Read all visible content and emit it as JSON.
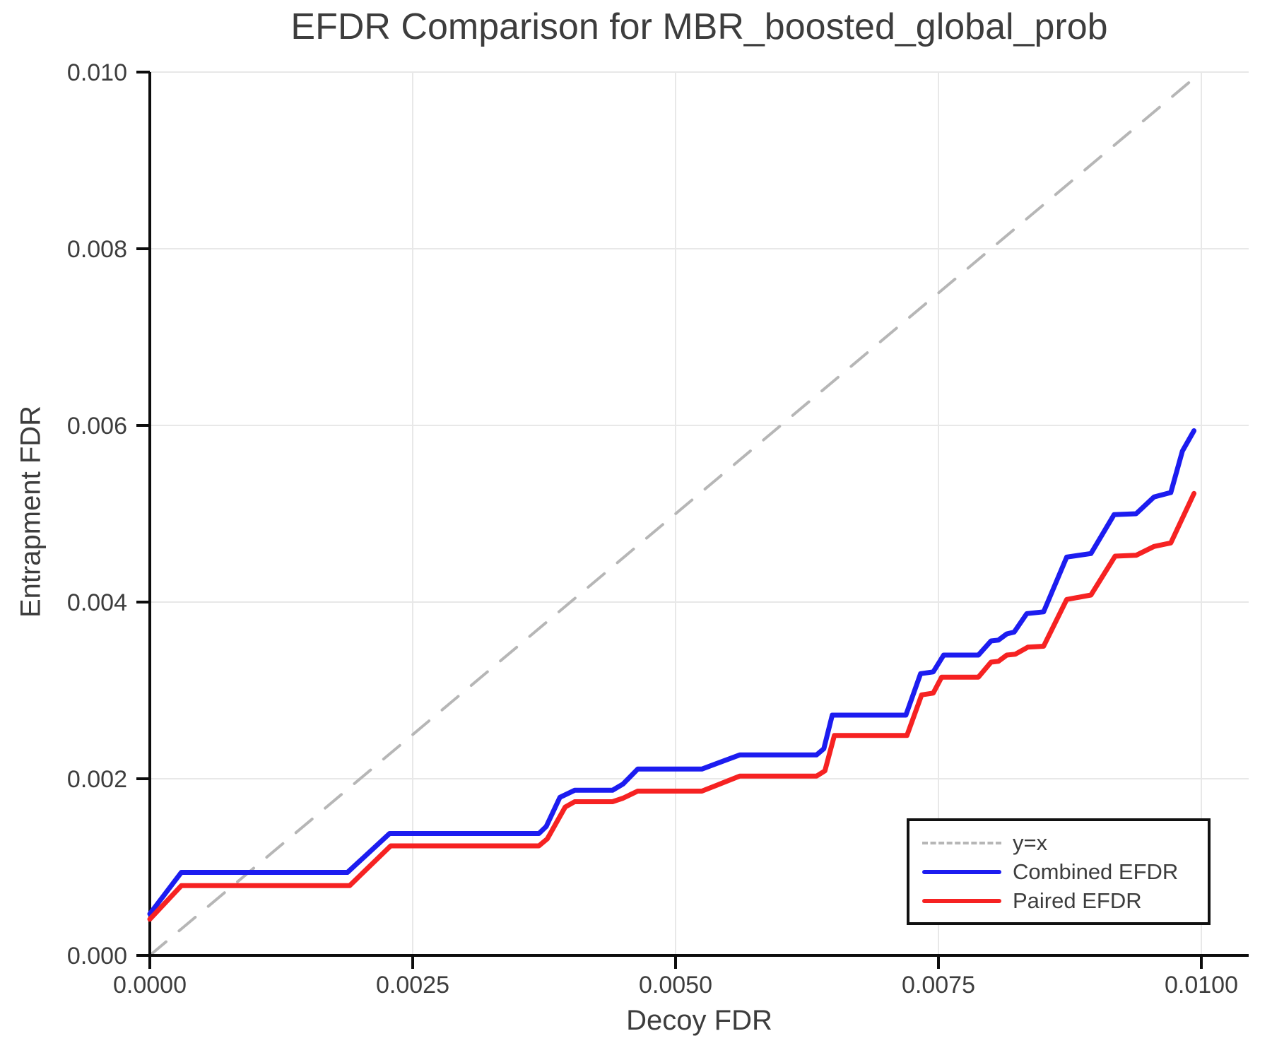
{
  "chart_data": {
    "type": "line",
    "title": "EFDR Comparison for MBR_boosted_global_prob",
    "xlabel": "Decoy FDR",
    "ylabel": "Entrapment FDR",
    "xlim": [
      0.0,
      0.01
    ],
    "ylim": [
      0.0,
      0.01
    ],
    "grid": true,
    "legend_position": "lower right",
    "x_ticks": {
      "values": [
        0.0,
        0.0025,
        0.005,
        0.0075,
        0.01
      ],
      "labels": [
        "0.0000",
        "0.0025",
        "0.0050",
        "0.0075",
        "0.0100"
      ]
    },
    "y_ticks": {
      "values": [
        0.0,
        0.002,
        0.004,
        0.006,
        0.008,
        0.01
      ],
      "labels": [
        "0.000",
        "0.002",
        "0.004",
        "0.006",
        "0.008",
        "0.010"
      ]
    },
    "series": [
      {
        "name": "y=x",
        "style": "dashed",
        "color": "#b6b6b6",
        "stroke_width": 4,
        "points": [
          [
            0.0,
            0.0
          ],
          [
            0.00995,
            0.00995
          ]
        ]
      },
      {
        "name": "Combined EFDR",
        "style": "solid",
        "color": "#1c1cf0",
        "stroke_width": 7,
        "points": [
          [
            0.0,
            0.00047
          ],
          [
            0.0003,
            0.00094
          ],
          [
            0.00188,
            0.00094
          ],
          [
            0.00228,
            0.00138
          ],
          [
            0.0037,
            0.00138
          ],
          [
            0.00377,
            0.00146
          ],
          [
            0.0039,
            0.00179
          ],
          [
            0.00404,
            0.00187
          ],
          [
            0.0044,
            0.00187
          ],
          [
            0.0045,
            0.00194
          ],
          [
            0.00464,
            0.00211
          ],
          [
            0.00525,
            0.00211
          ],
          [
            0.00561,
            0.00227
          ],
          [
            0.00634,
            0.00227
          ],
          [
            0.00641,
            0.00234
          ],
          [
            0.00649,
            0.00272
          ],
          [
            0.00719,
            0.00272
          ],
          [
            0.00733,
            0.00319
          ],
          [
            0.00745,
            0.00321
          ],
          [
            0.00755,
            0.0034
          ],
          [
            0.00788,
            0.0034
          ],
          [
            0.008,
            0.00356
          ],
          [
            0.00807,
            0.00357
          ],
          [
            0.00815,
            0.00364
          ],
          [
            0.00822,
            0.00366
          ],
          [
            0.00834,
            0.00387
          ],
          [
            0.0085,
            0.00389
          ],
          [
            0.00872,
            0.00451
          ],
          [
            0.00895,
            0.00455
          ],
          [
            0.00917,
            0.00499
          ],
          [
            0.00938,
            0.005
          ],
          [
            0.00955,
            0.00519
          ],
          [
            0.00971,
            0.00524
          ],
          [
            0.00982,
            0.00571
          ],
          [
            0.00993,
            0.00594
          ]
        ]
      },
      {
        "name": "Paired EFDR",
        "style": "solid",
        "color": "#f62222",
        "stroke_width": 7,
        "points": [
          [
            0.0,
            0.00041
          ],
          [
            0.0003,
            0.00079
          ],
          [
            0.0019,
            0.00079
          ],
          [
            0.00229,
            0.00124
          ],
          [
            0.0037,
            0.00124
          ],
          [
            0.00378,
            0.00132
          ],
          [
            0.00395,
            0.00168
          ],
          [
            0.00404,
            0.00174
          ],
          [
            0.0044,
            0.00174
          ],
          [
            0.0045,
            0.00178
          ],
          [
            0.00464,
            0.00186
          ],
          [
            0.00525,
            0.00186
          ],
          [
            0.00561,
            0.00203
          ],
          [
            0.00634,
            0.00203
          ],
          [
            0.00642,
            0.00209
          ],
          [
            0.00651,
            0.00249
          ],
          [
            0.0072,
            0.00249
          ],
          [
            0.00734,
            0.00295
          ],
          [
            0.00745,
            0.00297
          ],
          [
            0.00753,
            0.00315
          ],
          [
            0.00788,
            0.00315
          ],
          [
            0.008,
            0.00332
          ],
          [
            0.00807,
            0.00333
          ],
          [
            0.00815,
            0.0034
          ],
          [
            0.00823,
            0.00341
          ],
          [
            0.00835,
            0.00349
          ],
          [
            0.0085,
            0.0035
          ],
          [
            0.00872,
            0.00403
          ],
          [
            0.00895,
            0.00408
          ],
          [
            0.00918,
            0.00452
          ],
          [
            0.00938,
            0.00453
          ],
          [
            0.00955,
            0.00463
          ],
          [
            0.00971,
            0.00467
          ],
          [
            0.00993,
            0.00523
          ]
        ]
      }
    ],
    "style": {
      "text_color": "#3d3d3d",
      "grid_color": "#e8e8e8",
      "spine_color": "#0d0d0d",
      "background": "#ffffff"
    }
  }
}
